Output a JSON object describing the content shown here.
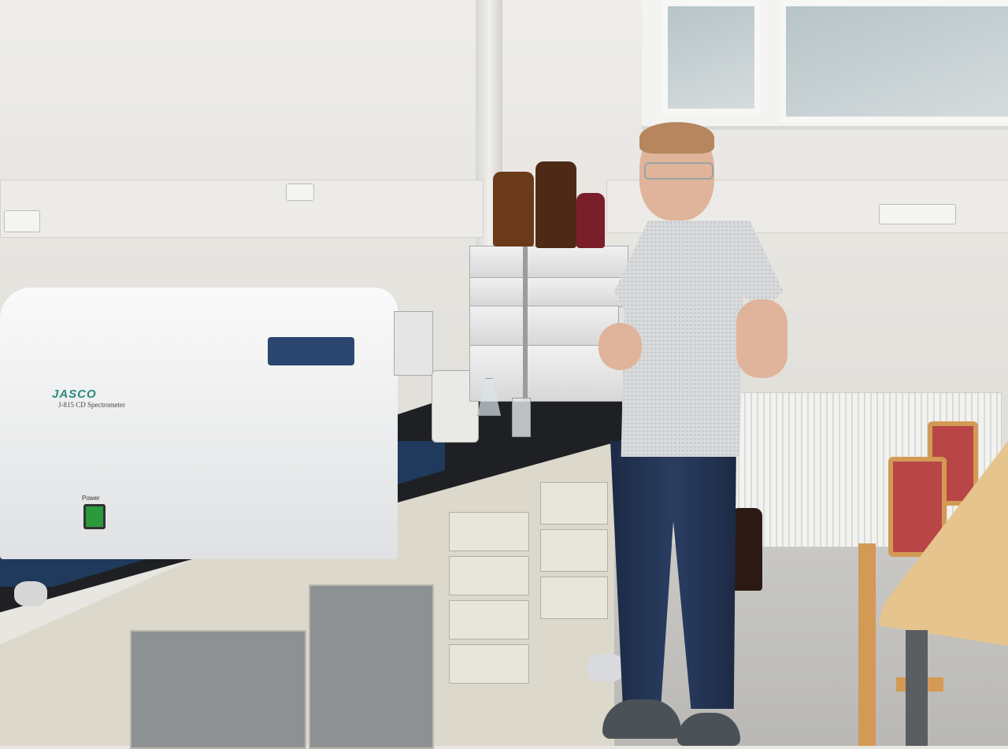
{
  "scene": {
    "spectrometer": {
      "brand": "JASCO",
      "model": "J-815 CD Spectrometer",
      "power_label": "Power"
    }
  },
  "colors": {
    "wall": "#e8e6e1",
    "benchtop": "#1f2023",
    "spectrometer_base": "#1f3a5c",
    "power_button": "#2a9a3a",
    "shirt": "#d8dadc",
    "jeans": "#24355a",
    "chair": "#b94646",
    "table": "#e6c48e"
  }
}
